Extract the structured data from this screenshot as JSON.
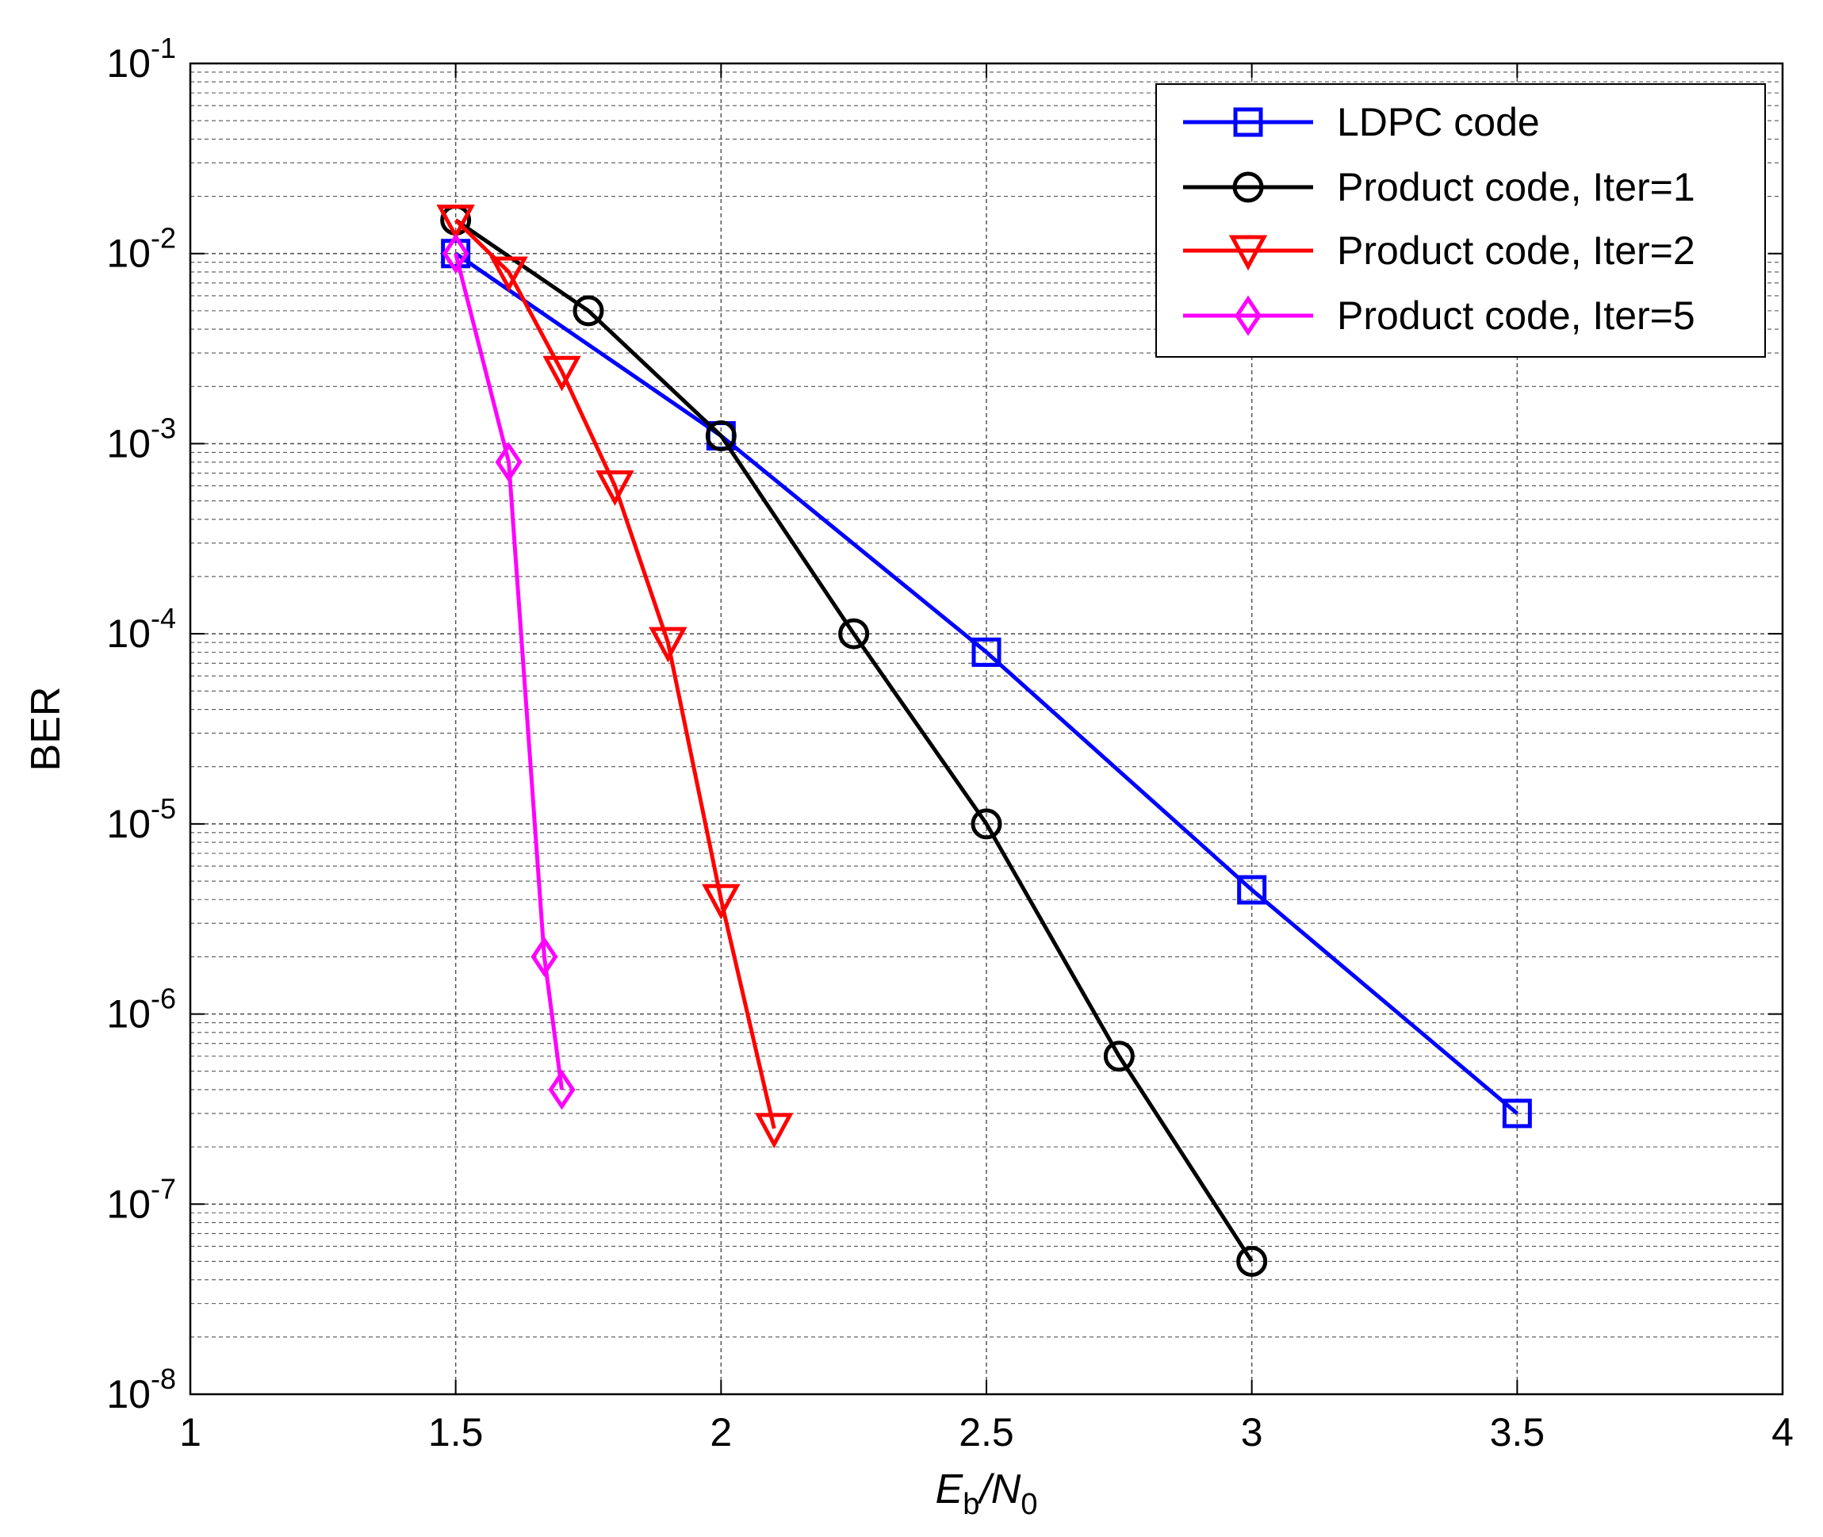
{
  "chart_data": {
    "type": "line",
    "title": "",
    "xlabel": {
      "main": "E",
      "sub": "b",
      "mid": "/N",
      "sub2": "0"
    },
    "ylabel": "BER",
    "xlim": [
      1,
      4
    ],
    "ylim_exp": [
      -8,
      -1
    ],
    "yscale": "log",
    "grid": true,
    "x_ticks": [
      {
        "value": 1,
        "label": "1"
      },
      {
        "value": 1.5,
        "label": "1.5"
      },
      {
        "value": 2,
        "label": "2"
      },
      {
        "value": 2.5,
        "label": "2.5"
      },
      {
        "value": 3,
        "label": "3"
      },
      {
        "value": 3.5,
        "label": "3.5"
      },
      {
        "value": 4,
        "label": "4"
      }
    ],
    "y_ticks": [
      {
        "exp": -1,
        "base": "10",
        "sup": "-1"
      },
      {
        "exp": -2,
        "base": "10",
        "sup": "-2"
      },
      {
        "exp": -3,
        "base": "10",
        "sup": "-3"
      },
      {
        "exp": -4,
        "base": "10",
        "sup": "-4"
      },
      {
        "exp": -5,
        "base": "10",
        "sup": "-5"
      },
      {
        "exp": -6,
        "base": "10",
        "sup": "-6"
      },
      {
        "exp": -7,
        "base": "10",
        "sup": "-7"
      },
      {
        "exp": -8,
        "base": "10",
        "sup": "-8"
      }
    ],
    "legend_position": "top-right",
    "series": [
      {
        "name": "LDPC code",
        "color": "#0000ff",
        "marker": "square",
        "x": [
          1.5,
          2,
          2.5,
          3,
          3.5
        ],
        "y": [
          0.01,
          0.0011,
          8e-05,
          4.5e-06,
          3e-07
        ]
      },
      {
        "name": "Product code, Iter=1",
        "color": "#000000",
        "marker": "circle",
        "x": [
          1.5,
          1.75,
          2,
          2.25,
          2.5,
          2.75,
          3
        ],
        "y": [
          0.015,
          0.005,
          0.0011,
          0.0001,
          1e-05,
          6e-07,
          5e-08
        ]
      },
      {
        "name": "Product code, Iter=2",
        "color": "#ff0000",
        "marker": "triangle-down",
        "x": [
          1.5,
          1.6,
          1.7,
          1.8,
          1.9,
          2,
          2.1
        ],
        "y": [
          0.015,
          0.008,
          0.0024,
          0.0006,
          9e-05,
          4e-06,
          2.5e-07
        ]
      },
      {
        "name": "Product code, Iter=5",
        "color": "#ff00ff",
        "marker": "diamond",
        "x": [
          1.5,
          1.6,
          1.667,
          1.7
        ],
        "y": [
          0.01,
          0.0008,
          2e-06,
          4e-07
        ]
      }
    ]
  }
}
